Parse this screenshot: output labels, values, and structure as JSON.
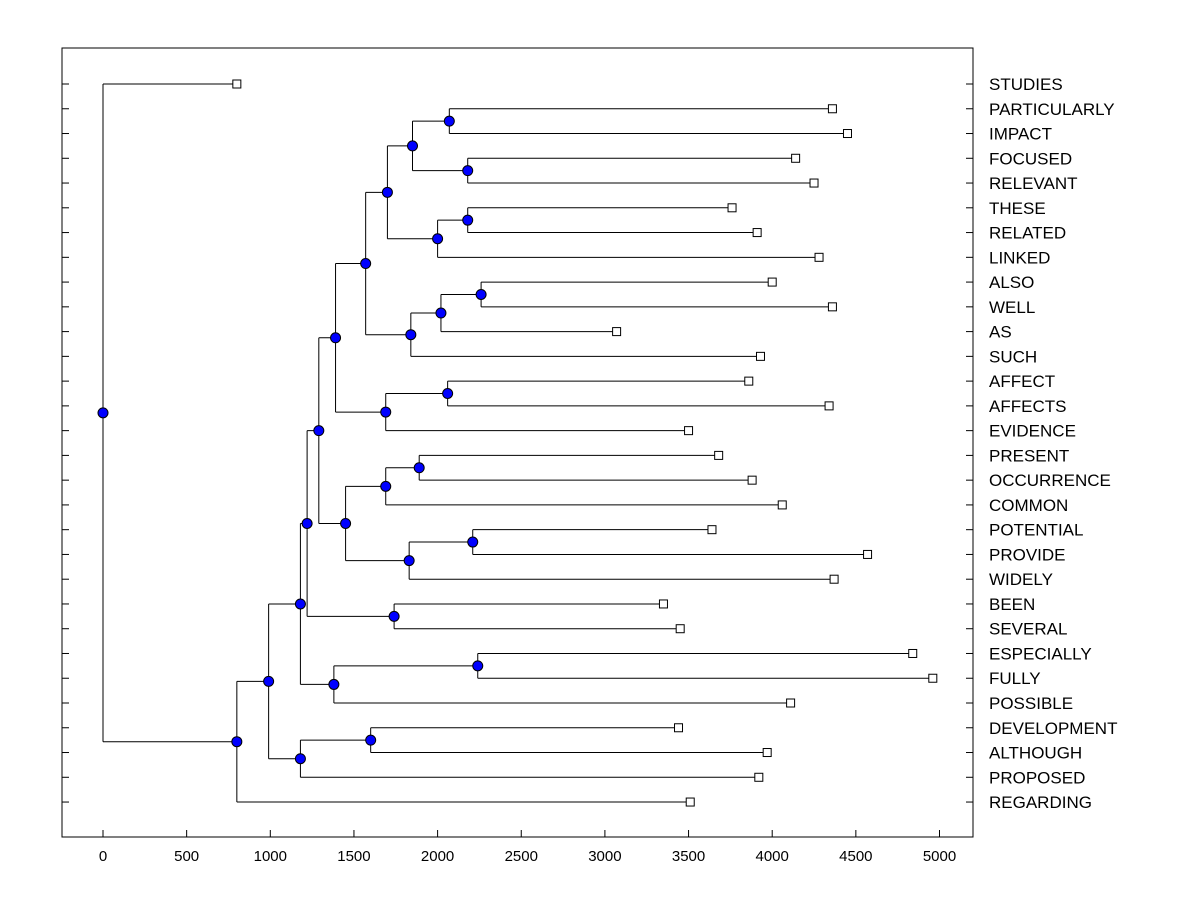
{
  "chart_data": {
    "type": "dendrogram",
    "title": "",
    "xlabel": "",
    "ylabel": "",
    "xlim": [
      -250,
      5200
    ],
    "x_ticks": [
      0,
      500,
      1000,
      1500,
      2000,
      2500,
      3000,
      3500,
      4000,
      4500,
      5000
    ],
    "x_tick_labels": [
      "0",
      "500",
      "1000",
      "1500",
      "2000",
      "2500",
      "3000",
      "3500",
      "4000",
      "4500",
      "5000"
    ],
    "leaves": [
      {
        "label": "STUDIES",
        "x": 800
      },
      {
        "label": "PARTICULARLY",
        "x": 4360
      },
      {
        "label": "IMPACT",
        "x": 4450
      },
      {
        "label": "FOCUSED",
        "x": 4140
      },
      {
        "label": "RELEVANT",
        "x": 4250
      },
      {
        "label": "THESE",
        "x": 3760
      },
      {
        "label": "RELATED",
        "x": 3910
      },
      {
        "label": "LINKED",
        "x": 4280
      },
      {
        "label": "ALSO",
        "x": 4000
      },
      {
        "label": "WELL",
        "x": 4360
      },
      {
        "label": "AS",
        "x": 3070
      },
      {
        "label": "SUCH",
        "x": 3930
      },
      {
        "label": "AFFECT",
        "x": 3860
      },
      {
        "label": "AFFECTS",
        "x": 4340
      },
      {
        "label": "EVIDENCE",
        "x": 3500
      },
      {
        "label": "PRESENT",
        "x": 3680
      },
      {
        "label": "OCCURRENCE",
        "x": 3880
      },
      {
        "label": "COMMON",
        "x": 4060
      },
      {
        "label": "POTENTIAL",
        "x": 3640
      },
      {
        "label": "PROVIDE",
        "x": 4570
      },
      {
        "label": "WIDELY",
        "x": 4370
      },
      {
        "label": "BEEN",
        "x": 3350
      },
      {
        "label": "SEVERAL",
        "x": 3450
      },
      {
        "label": "ESPECIALLY",
        "x": 4840
      },
      {
        "label": "FULLY",
        "x": 4960
      },
      {
        "label": "POSSIBLE",
        "x": 4110
      },
      {
        "label": "DEVELOPMENT",
        "x": 3440
      },
      {
        "label": "ALTHOUGH",
        "x": 3970
      },
      {
        "label": "PROPOSED",
        "x": 3920
      },
      {
        "label": "REGARDING",
        "x": 3510
      }
    ],
    "merges": [
      {
        "id": "n1",
        "x": 2070,
        "children": [
          "L1",
          "L2"
        ]
      },
      {
        "id": "n2",
        "x": 2180,
        "children": [
          "L3",
          "L4"
        ]
      },
      {
        "id": "n3",
        "x": 1850,
        "children": [
          "n1",
          "n2"
        ]
      },
      {
        "id": "n4",
        "x": 2180,
        "children": [
          "L5",
          "L6"
        ]
      },
      {
        "id": "n5",
        "x": 2000,
        "children": [
          "n4",
          "L7"
        ]
      },
      {
        "id": "n6",
        "x": 1700,
        "children": [
          "n3",
          "n5"
        ]
      },
      {
        "id": "n7",
        "x": 2260,
        "children": [
          "L8",
          "L9"
        ]
      },
      {
        "id": "n8",
        "x": 2020,
        "children": [
          "n7",
          "L10"
        ]
      },
      {
        "id": "n9",
        "x": 1840,
        "children": [
          "n8",
          "L11"
        ]
      },
      {
        "id": "n10",
        "x": 1570,
        "children": [
          "n6",
          "n9"
        ]
      },
      {
        "id": "n11",
        "x": 2060,
        "children": [
          "L12",
          "L13"
        ]
      },
      {
        "id": "n12",
        "x": 1690,
        "children": [
          "n11",
          "L14"
        ]
      },
      {
        "id": "n13",
        "x": 1390,
        "children": [
          "n10",
          "n12"
        ]
      },
      {
        "id": "n14",
        "x": 1890,
        "children": [
          "L15",
          "L16"
        ]
      },
      {
        "id": "n15",
        "x": 1690,
        "children": [
          "n14",
          "L17"
        ]
      },
      {
        "id": "n16",
        "x": 2210,
        "children": [
          "L18",
          "L19"
        ]
      },
      {
        "id": "n17",
        "x": 1830,
        "children": [
          "n16",
          "L20"
        ]
      },
      {
        "id": "n18",
        "x": 1450,
        "children": [
          "n15",
          "n17"
        ]
      },
      {
        "id": "n19",
        "x": 1290,
        "children": [
          "n13",
          "n18"
        ]
      },
      {
        "id": "n20",
        "x": 1740,
        "children": [
          "L21",
          "L22"
        ]
      },
      {
        "id": "n21",
        "x": 1220,
        "children": [
          "n19",
          "n20"
        ]
      },
      {
        "id": "n22",
        "x": 2240,
        "children": [
          "L23",
          "L24"
        ]
      },
      {
        "id": "n23",
        "x": 1380,
        "children": [
          "n22",
          "L25"
        ]
      },
      {
        "id": "n24",
        "x": 1180,
        "children": [
          "n21",
          "n23"
        ]
      },
      {
        "id": "n25",
        "x": 1600,
        "children": [
          "L26",
          "L27"
        ]
      },
      {
        "id": "n26",
        "x": 1180,
        "children": [
          "n25",
          "L28"
        ]
      },
      {
        "id": "n27",
        "x": 990,
        "children": [
          "n24",
          "n26"
        ]
      },
      {
        "id": "n28",
        "x": 800,
        "children": [
          "n27",
          "L29"
        ]
      },
      {
        "id": "n29",
        "x": 0,
        "children": [
          "L0",
          "n28"
        ]
      }
    ],
    "colors": {
      "node_fill": "#0000ff",
      "line": "#000000",
      "leaf_marker_fill": "#ffffff"
    }
  }
}
